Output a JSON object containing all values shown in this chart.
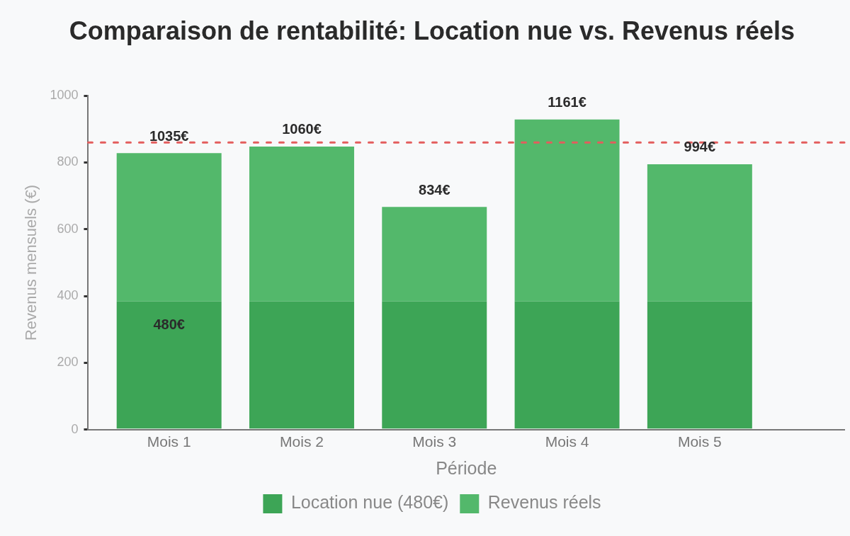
{
  "chart_data": {
    "type": "bar",
    "title": "Comparaison de rentabilité: Location nue vs. Revenus réels",
    "xlabel": "Période",
    "ylabel": "Revenus mensuels (€)",
    "categories": [
      "Mois 1",
      "Mois 2",
      "Mois 3",
      "Mois 4",
      "Mois 5"
    ],
    "series": [
      {
        "name": "Location nue (480€)",
        "color": "#3da556",
        "values": [
          384,
          384,
          384,
          384,
          384
        ]
      },
      {
        "name": "Revenus réels",
        "color": "#53b86b",
        "values": [
          444,
          464,
          283,
          545,
          411
        ]
      }
    ],
    "stacked": true,
    "ylim": [
      0,
      1000
    ],
    "yticks": [
      0,
      200,
      400,
      600,
      800,
      1000
    ],
    "grid": false,
    "legend": "bottom",
    "ref_lines": [
      {
        "axis": "y",
        "value": 860,
        "color": "#e35d5d",
        "line_style": "dashed"
      }
    ],
    "annotations": [
      {
        "text": "480€",
        "x": "Mois 1",
        "y": 384
      },
      {
        "text": "1035€",
        "x": "Mois 1",
        "y": 828
      },
      {
        "text": "1060€",
        "x": "Mois 2",
        "y": 848
      },
      {
        "text": "834€",
        "x": "Mois 3",
        "y": 667
      },
      {
        "text": "1161€",
        "x": "Mois 4",
        "y": 929
      },
      {
        "text": "994€",
        "x": "Mois 5",
        "y": 795
      }
    ]
  }
}
